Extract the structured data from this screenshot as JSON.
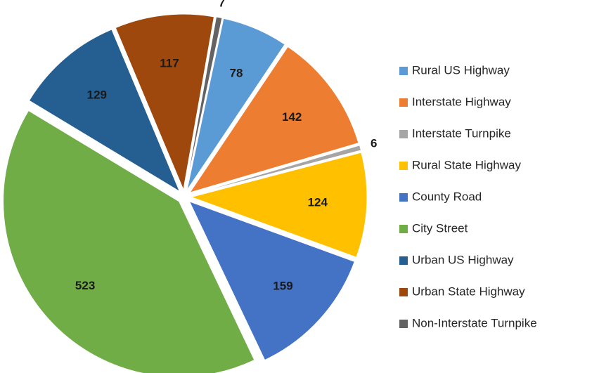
{
  "chart_data": {
    "type": "pie",
    "categories": [
      "Rural US Highway",
      "Interstate Highway",
      "Interstate Turnpike",
      "Rural State Highway",
      "County Road",
      "City Street",
      "Urban US Highway",
      "Urban State Highway",
      "Non-Interstate Turnpike"
    ],
    "values": [
      78,
      142,
      6,
      124,
      159,
      523,
      129,
      117,
      7
    ],
    "colors": [
      "#5b9bd5",
      "#ed7d31",
      "#a5a5a5",
      "#ffc000",
      "#4472c4",
      "#70ad47",
      "#255e91",
      "#9e480e",
      "#636363"
    ],
    "legend": "right"
  }
}
